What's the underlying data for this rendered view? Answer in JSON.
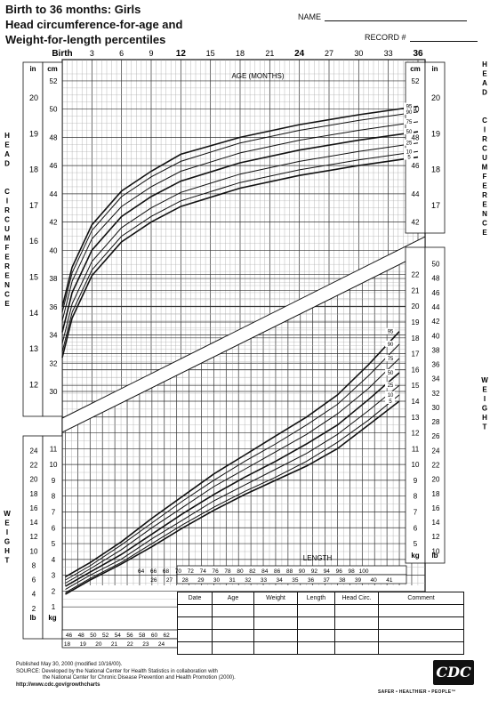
{
  "header": {
    "title_lines": [
      "Birth to 36 months: Girls",
      "Head circumference-for-age and",
      "Weight-for-length percentiles"
    ],
    "name_label": "NAME",
    "record_label": "RECORD #"
  },
  "chart_data": [
    {
      "type": "line",
      "title": "AGE (MONTHS)",
      "ylabel": "HEAD CIRCUMFERENCE",
      "xlabel": "AGE (MONTHS)",
      "x_tick_labels": [
        "Birth",
        "3",
        "6",
        "9",
        "12",
        "15",
        "18",
        "21",
        "24",
        "27",
        "30",
        "33",
        "36"
      ],
      "x_ticks": [
        0,
        3,
        6,
        9,
        12,
        15,
        18,
        21,
        24,
        27,
        30,
        33,
        36
      ],
      "y_units": [
        "cm",
        "in"
      ],
      "y_cm_ticks": [
        "30",
        "32",
        "34",
        "36",
        "38",
        "40",
        "42",
        "44",
        "46",
        "48",
        "50",
        "52"
      ],
      "y_in_ticks": [
        "12",
        "13",
        "14",
        "15",
        "16",
        "17",
        "18",
        "19",
        "20"
      ],
      "y_cm_right_ticks": [
        "42",
        "44",
        "46",
        "48",
        "50",
        "52"
      ],
      "y_in_right_ticks": [
        "17",
        "18",
        "19",
        "20"
      ],
      "xlim": [
        0,
        36
      ],
      "ylim": [
        29,
        53
      ],
      "grid": true,
      "x": [
        0,
        1,
        3,
        6,
        9,
        12,
        18,
        24,
        30,
        36
      ],
      "series": [
        {
          "name": "95",
          "values": [
            36.0,
            38.8,
            41.8,
            44.2,
            45.6,
            46.8,
            48.0,
            48.9,
            49.6,
            50.2
          ]
        },
        {
          "name": "90",
          "values": [
            35.6,
            38.4,
            41.4,
            43.8,
            45.2,
            46.3,
            47.6,
            48.5,
            49.2,
            49.8
          ]
        },
        {
          "name": "75",
          "values": [
            35.0,
            37.8,
            40.8,
            43.1,
            44.5,
            45.6,
            46.9,
            47.8,
            48.5,
            49.1
          ]
        },
        {
          "name": "50",
          "values": [
            34.2,
            37.0,
            40.0,
            42.4,
            43.8,
            44.9,
            46.2,
            47.1,
            47.8,
            48.4
          ]
        },
        {
          "name": "25",
          "values": [
            33.4,
            36.2,
            39.2,
            41.6,
            43.0,
            44.1,
            45.4,
            46.3,
            47.0,
            47.6
          ]
        },
        {
          "name": "10",
          "values": [
            32.8,
            35.6,
            38.6,
            41.0,
            42.4,
            43.5,
            44.8,
            45.7,
            46.4,
            47.0
          ]
        },
        {
          "name": "5",
          "values": [
            32.4,
            35.2,
            38.2,
            40.6,
            42.0,
            43.1,
            44.4,
            45.3,
            46.0,
            46.6
          ]
        }
      ]
    },
    {
      "type": "line",
      "title": "LENGTH",
      "ylabel": "WEIGHT",
      "xlabel": "LENGTH",
      "x_cm_ticks": [
        "46",
        "48",
        "50",
        "52",
        "54",
        "56",
        "58",
        "60",
        "62",
        "64",
        "66",
        "68",
        "70",
        "72",
        "74",
        "76",
        "78",
        "80",
        "82",
        "84",
        "86",
        "88",
        "90",
        "92",
        "94",
        "96",
        "98",
        "100"
      ],
      "x_in_ticks": [
        "18",
        "19",
        "20",
        "21",
        "22",
        "23",
        "24",
        "26",
        "27",
        "28",
        "29",
        "30",
        "31",
        "32",
        "33",
        "34",
        "35",
        "36",
        "37",
        "38",
        "39",
        "40",
        "41"
      ],
      "y_units": [
        "kg",
        "lb"
      ],
      "y_kg_ticks": [
        "1",
        "2",
        "3",
        "4",
        "5",
        "6",
        "7",
        "8",
        "9",
        "10",
        "11",
        "12",
        "13",
        "14",
        "15",
        "16",
        "17",
        "18",
        "19",
        "20",
        "21",
        "22"
      ],
      "y_lb_ticks": [
        "2",
        "4",
        "6",
        "8",
        "10",
        "12",
        "14",
        "16",
        "18",
        "20",
        "22",
        "24",
        "26",
        "28",
        "30",
        "32",
        "34",
        "36",
        "38",
        "40",
        "42",
        "44",
        "46",
        "48",
        "50"
      ],
      "xlim": [
        45,
        103
      ],
      "ylim": [
        0,
        23
      ],
      "grid": true,
      "x": [
        46,
        50,
        55,
        60,
        65,
        70,
        75,
        80,
        85,
        90,
        95,
        100
      ],
      "series": [
        {
          "name": "95",
          "values": [
            2.9,
            3.8,
            5.1,
            6.6,
            8.0,
            9.4,
            10.6,
            11.8,
            13.0,
            14.4,
            16.3,
            18.4
          ]
        },
        {
          "name": "90",
          "values": [
            2.7,
            3.6,
            4.9,
            6.3,
            7.7,
            9.0,
            10.2,
            11.3,
            12.5,
            13.8,
            15.6,
            17.6
          ]
        },
        {
          "name": "75",
          "values": [
            2.5,
            3.4,
            4.6,
            6.0,
            7.3,
            8.6,
            9.7,
            10.8,
            11.9,
            13.2,
            14.8,
            16.7
          ]
        },
        {
          "name": "50",
          "values": [
            2.3,
            3.2,
            4.3,
            5.6,
            6.9,
            8.1,
            9.2,
            10.2,
            11.3,
            12.5,
            14.1,
            15.8
          ]
        },
        {
          "name": "25",
          "values": [
            2.1,
            3.0,
            4.0,
            5.3,
            6.5,
            7.7,
            8.7,
            9.7,
            10.7,
            11.9,
            13.4,
            15.0
          ]
        },
        {
          "name": "10",
          "values": [
            1.9,
            2.8,
            3.8,
            5.0,
            6.2,
            7.3,
            8.3,
            9.2,
            10.2,
            11.4,
            12.8,
            14.4
          ]
        },
        {
          "name": "5",
          "values": [
            1.8,
            2.7,
            3.7,
            4.8,
            6.0,
            7.1,
            8.1,
            9.0,
            9.9,
            11.0,
            12.5,
            14.0
          ]
        }
      ]
    }
  ],
  "side_labels": {
    "head_left": "HEAD CIRCUMFERENCE",
    "head_right": "HEAD CIRCUMFERENCE",
    "weight_left": "WEIGHT",
    "weight_right": "WEIGHT"
  },
  "record_table": {
    "headers": [
      "Date",
      "Age",
      "Weight",
      "Length",
      "Head Circ.",
      "Comment"
    ]
  },
  "footer": {
    "published": "Published May 30, 2000 (modified 10/16/00).",
    "source_1": "SOURCE: Developed by the National Center for Health Statistics in collaboration with",
    "source_2": "the National Center for Chronic Disease Prevention and Health Promotion (2000).",
    "url": "http://www.cdc.gov/growthcharts",
    "logo": "CDC",
    "tagline": "SAFER • HEALTHIER • PEOPLE™"
  }
}
